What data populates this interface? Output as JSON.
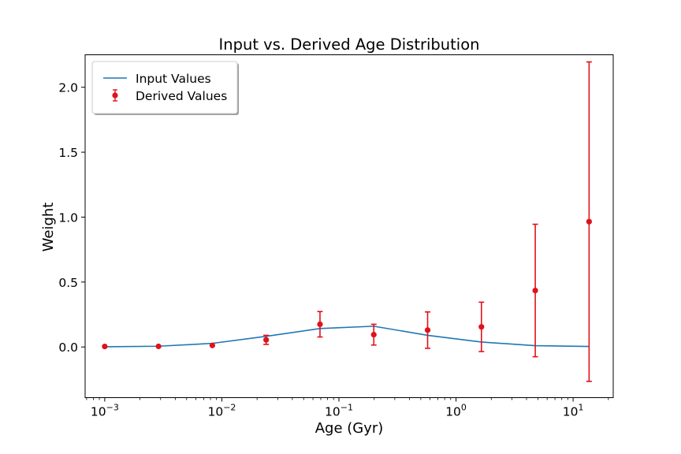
{
  "chart_data": {
    "type": "scatter",
    "title": "Input vs. Derived Age Distribution",
    "xlabel": "Age (Gyr)",
    "ylabel": "Weight",
    "xscale": "log",
    "xlim": [
      0.00068,
      22
    ],
    "ylim": [
      -0.39,
      2.25
    ],
    "grid": false,
    "legend_position": "upper left",
    "x_ticks": [
      {
        "value": 0.001,
        "base": "10",
        "exp": "−3"
      },
      {
        "value": 0.01,
        "base": "10",
        "exp": "−2"
      },
      {
        "value": 0.1,
        "base": "10",
        "exp": "−1"
      },
      {
        "value": 1,
        "base": "10",
        "exp": "0"
      },
      {
        "value": 10,
        "base": "10",
        "exp": "1"
      }
    ],
    "y_ticks": [
      {
        "value": 0.0,
        "label": "0.0"
      },
      {
        "value": 0.5,
        "label": "0.5"
      },
      {
        "value": 1.0,
        "label": "1.0"
      },
      {
        "value": 1.5,
        "label": "1.5"
      },
      {
        "value": 2.0,
        "label": "2.0"
      }
    ],
    "series": [
      {
        "name": "Input Values",
        "kind": "line",
        "color": "#1f77b4",
        "x": [
          0.001,
          0.00288,
          0.0083,
          0.0239,
          0.0689,
          0.1985,
          0.572,
          1.648,
          4.75,
          13.69
        ],
        "y": [
          0.002,
          0.006,
          0.028,
          0.082,
          0.142,
          0.16,
          0.09,
          0.038,
          0.01,
          0.004
        ]
      },
      {
        "name": "Derived Values",
        "kind": "errorbar",
        "color": "#e0121c",
        "x": [
          0.001,
          0.00288,
          0.0083,
          0.0239,
          0.0689,
          0.1985,
          0.572,
          1.648,
          4.75,
          13.69
        ],
        "y": [
          0.004,
          0.005,
          0.012,
          0.055,
          0.175,
          0.095,
          0.13,
          0.155,
          0.435,
          0.965
        ],
        "err": [
          0.0,
          0.0,
          0.0,
          0.035,
          0.098,
          0.08,
          0.14,
          0.19,
          0.51,
          1.23
        ]
      }
    ]
  }
}
